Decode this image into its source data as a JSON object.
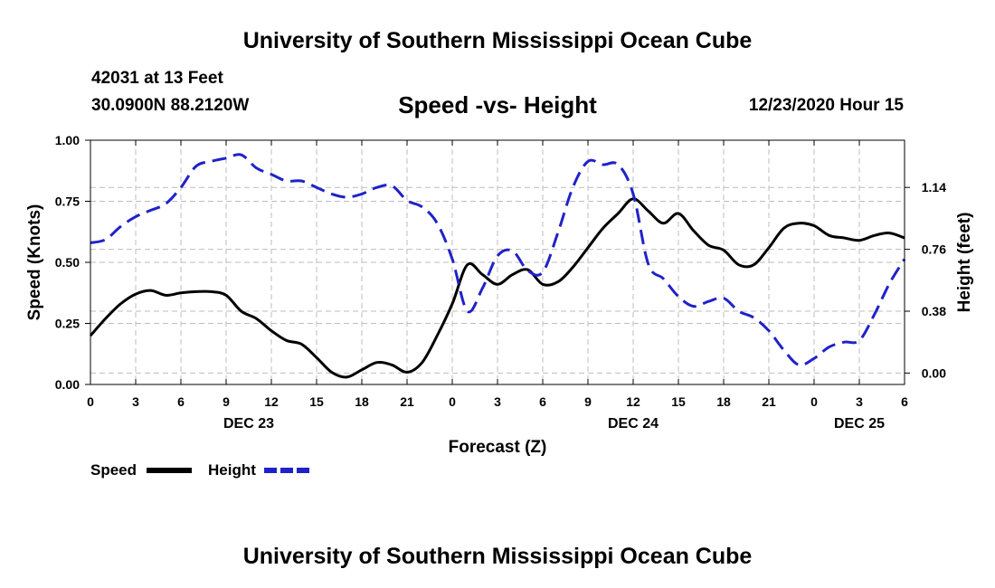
{
  "header": {
    "title_top": "University of Southern Mississippi Ocean Cube",
    "title_bottom": "University of Southern Mississippi Ocean Cube",
    "station": "42031 at 13 Feet",
    "position": "30.0900N 88.2120W",
    "chart_subtitle": "Speed -vs- Height",
    "datetime": "12/23/2020 Hour 15"
  },
  "colors": {
    "speed": "#000000",
    "height": "#1f22c8",
    "grid": "#bdbdbd"
  },
  "chart_data": {
    "type": "line",
    "title": "Speed -vs- Height",
    "xlabel": "Forecast (Z)",
    "ylabel": "Speed (Knots)",
    "y2label": "Height (feet)",
    "xlim": [
      0,
      54
    ],
    "ylim": [
      0,
      1
    ],
    "y2lim": [
      -0.07,
      1.43
    ],
    "y_ticks": [
      0.0,
      0.25,
      0.5,
      0.75,
      1.0
    ],
    "y_tick_labels": [
      "0.00",
      "0.25",
      "0.50",
      "0.75",
      "1.00"
    ],
    "y2_ticks": [
      0.0,
      0.38,
      0.76,
      1.14
    ],
    "y2_tick_labels": [
      "0.00",
      "0.38",
      "0.76",
      "1.14"
    ],
    "x_ticks": [
      0,
      3,
      6,
      9,
      12,
      15,
      18,
      21,
      24,
      27,
      30,
      33,
      36,
      39,
      42,
      45,
      48,
      51,
      54
    ],
    "x_tick_labels": [
      "0",
      "3",
      "6",
      "9",
      "12",
      "15",
      "18",
      "21",
      "0",
      "3",
      "6",
      "9",
      "12",
      "15",
      "18",
      "21",
      "0",
      "3",
      "6"
    ],
    "date_labels": [
      {
        "x": 10.5,
        "label": "DEC 23"
      },
      {
        "x": 36,
        "label": "DEC 24"
      },
      {
        "x": 51,
        "label": "DEC 25"
      }
    ],
    "grid": true,
    "series": [
      {
        "name": "Speed",
        "axis": "left",
        "style": "solid",
        "x": [
          0,
          1,
          2,
          3,
          4,
          5,
          6,
          7,
          8,
          9,
          10,
          11,
          12,
          13,
          14,
          15,
          16,
          17,
          18,
          19,
          20,
          21,
          22,
          23,
          24,
          25,
          26,
          27,
          28,
          29,
          30,
          31,
          32,
          33,
          34,
          35,
          36,
          37,
          38,
          39,
          40,
          41,
          42,
          43,
          44,
          45,
          46,
          47,
          48,
          49,
          50,
          51,
          52,
          53,
          54
        ],
        "values": [
          0.2,
          0.27,
          0.33,
          0.37,
          0.385,
          0.365,
          0.375,
          0.38,
          0.38,
          0.365,
          0.3,
          0.27,
          0.22,
          0.18,
          0.165,
          0.11,
          0.05,
          0.03,
          0.06,
          0.09,
          0.08,
          0.05,
          0.09,
          0.2,
          0.33,
          0.49,
          0.45,
          0.41,
          0.45,
          0.47,
          0.41,
          0.42,
          0.48,
          0.56,
          0.64,
          0.7,
          0.76,
          0.71,
          0.66,
          0.7,
          0.63,
          0.57,
          0.55,
          0.49,
          0.49,
          0.56,
          0.64,
          0.66,
          0.65,
          0.61,
          0.6,
          0.59,
          0.61,
          0.62,
          0.6
        ]
      },
      {
        "name": "Height",
        "axis": "right",
        "style": "dashed",
        "x": [
          0,
          1,
          2,
          3,
          4,
          5,
          6,
          7,
          8,
          9,
          10,
          11,
          12,
          13,
          14,
          15,
          16,
          17,
          18,
          19,
          20,
          21,
          22,
          23,
          24,
          25,
          26,
          27,
          28,
          29,
          30,
          31,
          32,
          33,
          34,
          35,
          36,
          37,
          38,
          39,
          40,
          41,
          42,
          43,
          44,
          45,
          46,
          47,
          48,
          49,
          50,
          51,
          52,
          53,
          54
        ],
        "values": [
          0.8,
          0.82,
          0.9,
          0.96,
          1.0,
          1.04,
          1.14,
          1.27,
          1.3,
          1.32,
          1.34,
          1.26,
          1.22,
          1.18,
          1.18,
          1.14,
          1.1,
          1.08,
          1.1,
          1.14,
          1.15,
          1.06,
          1.02,
          0.92,
          0.7,
          0.38,
          0.52,
          0.72,
          0.75,
          0.63,
          0.62,
          0.86,
          1.14,
          1.3,
          1.28,
          1.28,
          1.1,
          0.67,
          0.58,
          0.47,
          0.41,
          0.44,
          0.46,
          0.38,
          0.34,
          0.26,
          0.14,
          0.05,
          0.09,
          0.16,
          0.19,
          0.2,
          0.36,
          0.55,
          0.7
        ]
      }
    ],
    "legend": {
      "position": "bottom-left",
      "entries": [
        {
          "label": "Speed",
          "style": "solid"
        },
        {
          "label": "Height",
          "style": "dashed"
        }
      ]
    }
  }
}
